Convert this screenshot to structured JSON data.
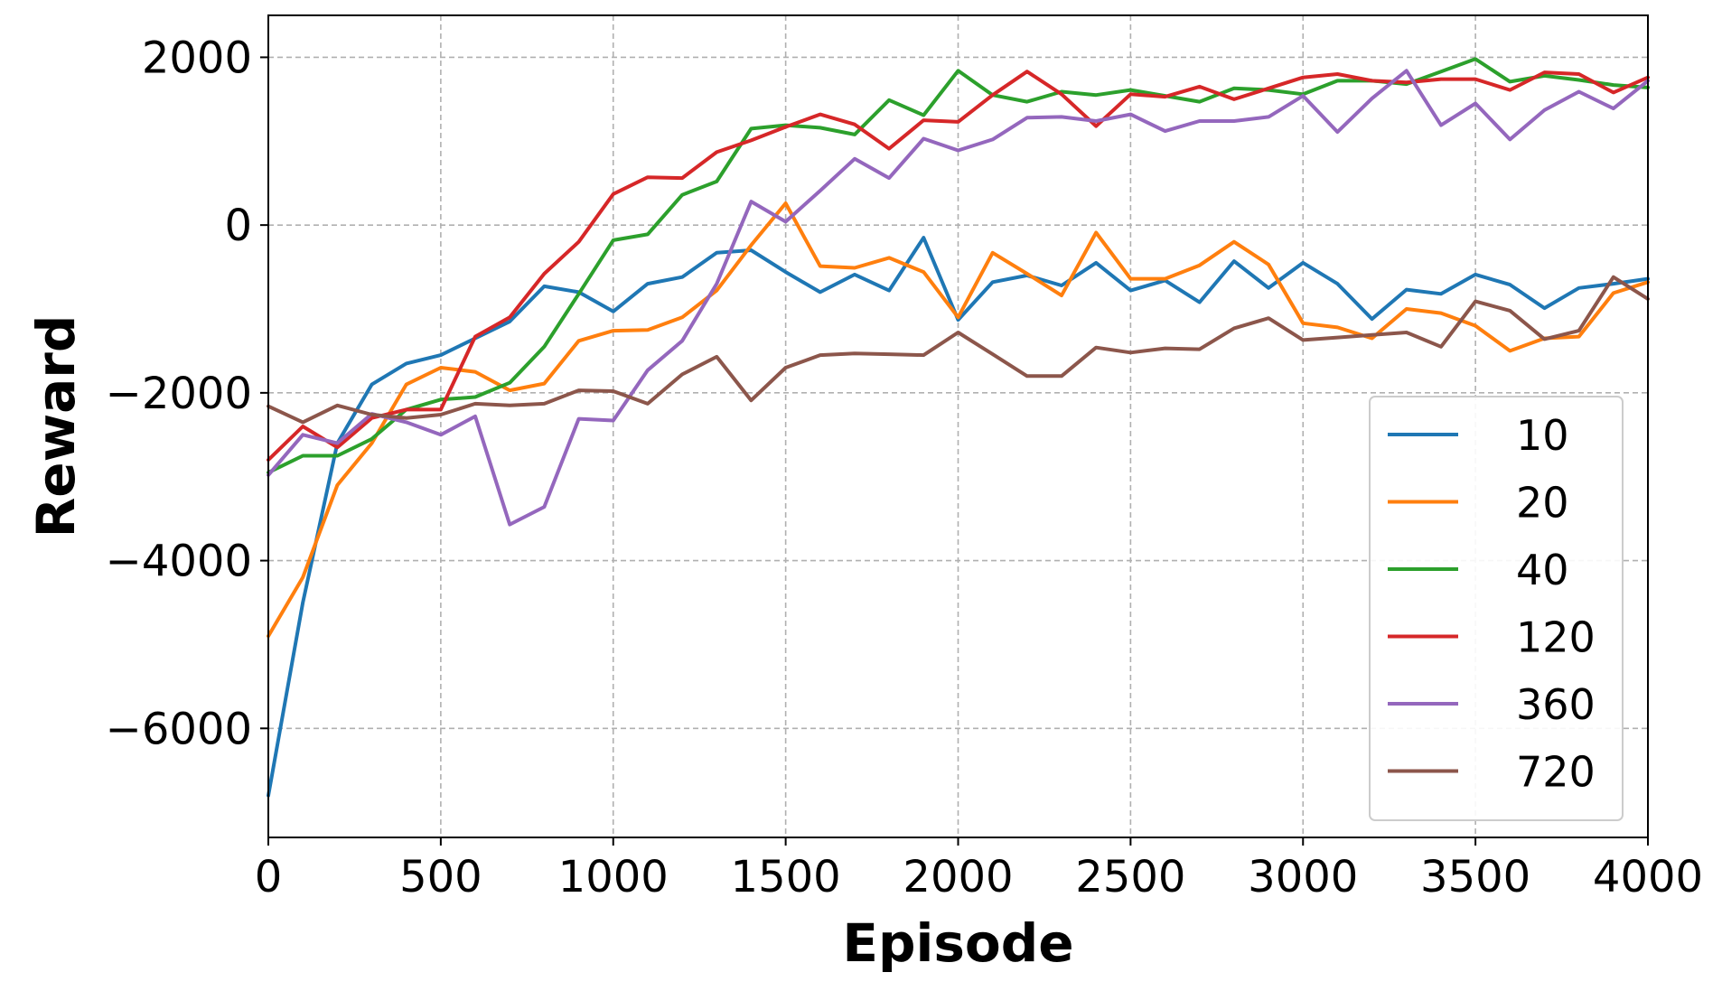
{
  "chart_data": {
    "type": "line",
    "title": "",
    "xlabel": "Episode",
    "ylabel": "Reward",
    "xlim": [
      0,
      4000
    ],
    "ylim": [
      -7300,
      2500
    ],
    "xticks": [
      0,
      500,
      1000,
      1500,
      2000,
      2500,
      3000,
      3500,
      4000
    ],
    "yticks": [
      -6000,
      -4000,
      -2000,
      0,
      2000
    ],
    "grid": true,
    "legend_position": "lower-right",
    "x": [
      0,
      100,
      200,
      300,
      400,
      500,
      600,
      700,
      800,
      900,
      1000,
      1100,
      1200,
      1300,
      1400,
      1500,
      1600,
      1700,
      1800,
      1900,
      2000,
      2100,
      2200,
      2300,
      2400,
      2500,
      2600,
      2700,
      2800,
      2900,
      3000,
      3100,
      3200,
      3300,
      3400,
      3500,
      3600,
      3700,
      3800,
      3900,
      4000
    ],
    "series": [
      {
        "name": "10",
        "color": "#1f77b4",
        "values": [
          -6800,
          -4500,
          -2600,
          -1900,
          -1650,
          -1550,
          -1350,
          -1150,
          -730,
          -800,
          -1030,
          -700,
          -620,
          -330,
          -300,
          -560,
          -800,
          -590,
          -780,
          -150,
          -1130,
          -680,
          -600,
          -720,
          -450,
          -780,
          -660,
          -920,
          -430,
          -750,
          -450,
          -700,
          -1120,
          -770,
          -820,
          -590,
          -710,
          -990,
          -750,
          -700,
          -640
        ]
      },
      {
        "name": "20",
        "color": "#ff7f0e",
        "values": [
          -4900,
          -4200,
          -3100,
          -2600,
          -1900,
          -1700,
          -1750,
          -1970,
          -1890,
          -1380,
          -1260,
          -1250,
          -1100,
          -780,
          -240,
          260,
          -490,
          -510,
          -390,
          -560,
          -1100,
          -330,
          -580,
          -840,
          -90,
          -640,
          -640,
          -480,
          -200,
          -470,
          -1170,
          -1220,
          -1350,
          -1000,
          -1050,
          -1200,
          -1500,
          -1350,
          -1330,
          -810,
          -680
        ]
      },
      {
        "name": "40",
        "color": "#2ca02c",
        "values": [
          -2950,
          -2750,
          -2750,
          -2550,
          -2200,
          -2080,
          -2050,
          -1880,
          -1450,
          -820,
          -180,
          -110,
          360,
          520,
          1150,
          1190,
          1160,
          1080,
          1490,
          1310,
          1840,
          1550,
          1470,
          1590,
          1550,
          1610,
          1540,
          1470,
          1630,
          1610,
          1560,
          1720,
          1720,
          1680,
          1830,
          1980,
          1710,
          1780,
          1730,
          1670,
          1640
        ]
      },
      {
        "name": "120",
        "color": "#d62728",
        "values": [
          -2800,
          -2400,
          -2650,
          -2300,
          -2200,
          -2200,
          -1330,
          -1100,
          -580,
          -200,
          370,
          570,
          560,
          870,
          1010,
          1170,
          1320,
          1200,
          910,
          1250,
          1230,
          1550,
          1830,
          1560,
          1180,
          1560,
          1530,
          1650,
          1500,
          1630,
          1760,
          1800,
          1720,
          1700,
          1740,
          1740,
          1610,
          1820,
          1800,
          1580,
          1760
        ]
      },
      {
        "name": "360",
        "color": "#9467bd",
        "values": [
          -2980,
          -2500,
          -2600,
          -2250,
          -2350,
          -2500,
          -2280,
          -3570,
          -3360,
          -2310,
          -2330,
          -1730,
          -1380,
          -700,
          280,
          40,
          410,
          790,
          560,
          1030,
          890,
          1020,
          1280,
          1290,
          1240,
          1320,
          1120,
          1240,
          1240,
          1290,
          1540,
          1110,
          1510,
          1840,
          1190,
          1450,
          1020,
          1370,
          1590,
          1390,
          1720
        ]
      },
      {
        "name": "720",
        "color": "#8c564b",
        "values": [
          -2160,
          -2350,
          -2150,
          -2260,
          -2300,
          -2260,
          -2130,
          -2150,
          -2130,
          -1970,
          -1980,
          -2130,
          -1780,
          -1570,
          -2090,
          -1700,
          -1550,
          -1530,
          -1540,
          -1550,
          -1280,
          -1540,
          -1800,
          -1800,
          -1460,
          -1520,
          -1470,
          -1480,
          -1230,
          -1110,
          -1370,
          -1340,
          -1310,
          -1280,
          -1450,
          -910,
          -1020,
          -1360,
          -1260,
          -620,
          -880
        ]
      }
    ]
  }
}
